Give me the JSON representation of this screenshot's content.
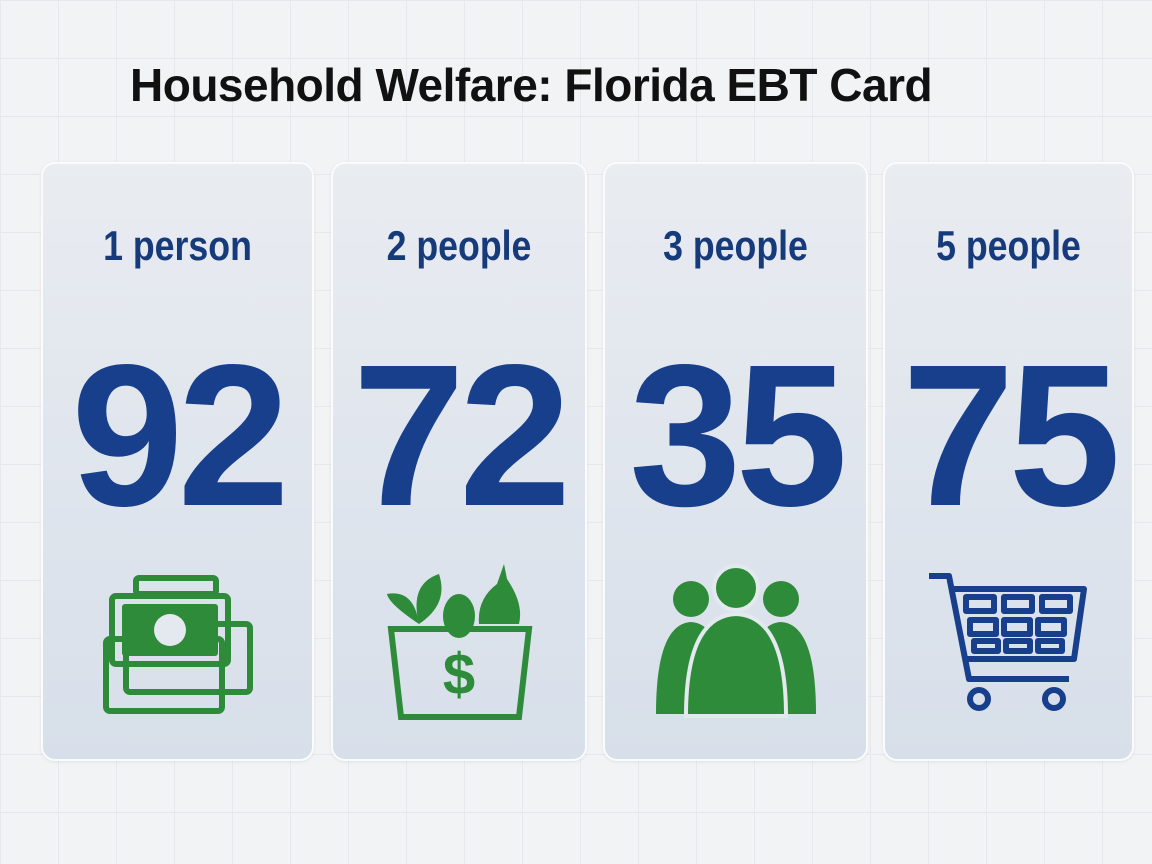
{
  "title": "Household Welfare: Florida EBT Card",
  "cards": [
    {
      "label": "1 person",
      "value": 92
    },
    {
      "label": "2 people",
      "value": 72
    },
    {
      "label": "3 people",
      "value": 35
    },
    {
      "label": "5 people",
      "value": 75
    }
  ]
}
